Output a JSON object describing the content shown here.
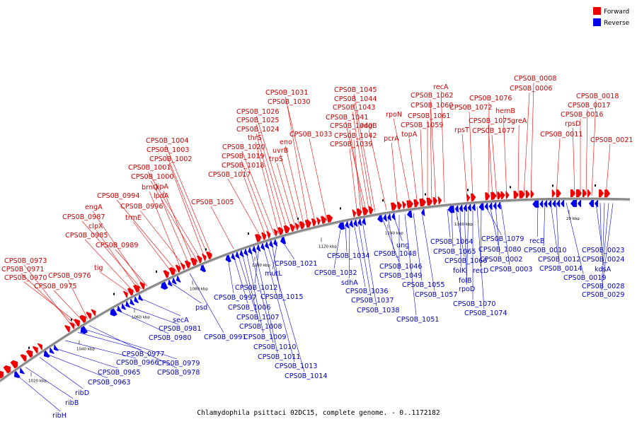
{
  "title": "Chlamydophila psittaci 02DC15, complete genome. - 0..1172182",
  "legend": [
    {
      "label": "Forward",
      "color": "#ee0000"
    },
    {
      "label": "Reverse",
      "color": "#0000ee"
    }
  ],
  "colors": {
    "forward": "#ee0000",
    "reverse": "#0000ee",
    "backbone": "#888888"
  },
  "kbp_ticks": [
    "1020 kbp",
    "1040 kbp",
    "1060 kbp",
    "1080 kbp",
    "1100 kbp",
    "1120 kbp",
    "1140 kbp",
    "1160 kbp",
    "20 kbp"
  ],
  "forward_labels": [
    "CPS0B_0973",
    "CPS0B_0971",
    "CPS0B_0970",
    "CPS0B_0976",
    "CPS0B_0975",
    "tig",
    "CPS0B_0985",
    "clpX",
    "CPS0B_0987",
    "engA",
    "CPS0B_0989",
    "trmE",
    "CPS0B_0994",
    "brnQ",
    "CPS0B_0996",
    "lpdA",
    "lipA",
    "CPS0B_1000",
    "CPS0B_1001",
    "CPS0B_1002",
    "CPS0B_1003",
    "CPS0B_1004",
    "CPS0B_1005",
    "CPS0B_1017",
    "CPS0B_1018",
    "CPS0B_1019",
    "CPS0B_1020",
    "thrS",
    "CPS0B_1024",
    "CPS0B_1025",
    "CPS0B_1026",
    "trpS",
    "uvrB",
    "eno",
    "CPS0B_1030",
    "CPS0B_1031",
    "CPS0B_1033",
    "CPS0B_1039",
    "CPS0B_1042",
    "CPS0B_1040",
    "CPS0B_1041",
    "CPS0B_1043",
    "CPS0B_1044",
    "CPS0B_1045",
    "rdgB",
    "pcrA",
    "rpoN",
    "topA",
    "CPS0B_1059",
    "CPS0B_1061",
    "CPS0B_1060",
    "CPS0B_1062",
    "recA",
    "rpsT",
    "CPS0B_1072",
    "CPS0B_1076",
    "CPS0B_1075",
    "CPS0B_1077",
    "hemB",
    "greA",
    "CPS0B_0006",
    "CPS0B_0008",
    "CPS0B_0011",
    "rpsD",
    "CPS0B_0016",
    "CPS0B_0017",
    "CPS0B_0018",
    "CPS0B_0021"
  ],
  "reverse_labels": [
    "ribH",
    "ribB",
    "ribD",
    "CPS0B_0963",
    "CPS0B_0965",
    "CPS0B_0966",
    "CPS0B_0977",
    "CPS0B_0979",
    "CPS0B_0978",
    "CPS0B_0980",
    "CPS0B_0981",
    "secA",
    "psd",
    "CPS0B_0991",
    "CPS0B_0997",
    "CPS0B_1006",
    "CPS0B_1007",
    "CPS0B_1008",
    "CPS0B_1009",
    "CPS0B_1010",
    "CPS0B_1011",
    "CPS0B_1012",
    "CPS0B_1013",
    "CPS0B_1014",
    "CPS0B_1015",
    "mutL",
    "CPS0B_1021",
    "CPS0B_1032",
    "CPS0B_1034",
    "sdhA",
    "CPS0B_1036",
    "CPS0B_1037",
    "CPS0B_1038",
    "CPS0B_1046",
    "CPS0B_1048",
    "ung",
    "CPS0B_1049",
    "CPS0B_1051",
    "CPS0B_1055",
    "CPS0B_1057",
    "CPS0B_1064",
    "CPS0B_1065",
    "CPS0B_1066",
    "folK",
    "folB",
    "rpoD",
    "CPS0B_1070",
    "CPS0B_1074",
    "recD",
    "CPS0B_1079",
    "CPS0B_1080",
    "CPS0B_0002",
    "CPS0B_0003",
    "recB",
    "CPS0B_0010",
    "CPS0B_0012",
    "CPS0B_0014",
    "CPS0B_0019",
    "CPS0B_0023",
    "CPS0B_0024",
    "kdsA",
    "CPS0B_0028",
    "CPS0B_0029"
  ]
}
